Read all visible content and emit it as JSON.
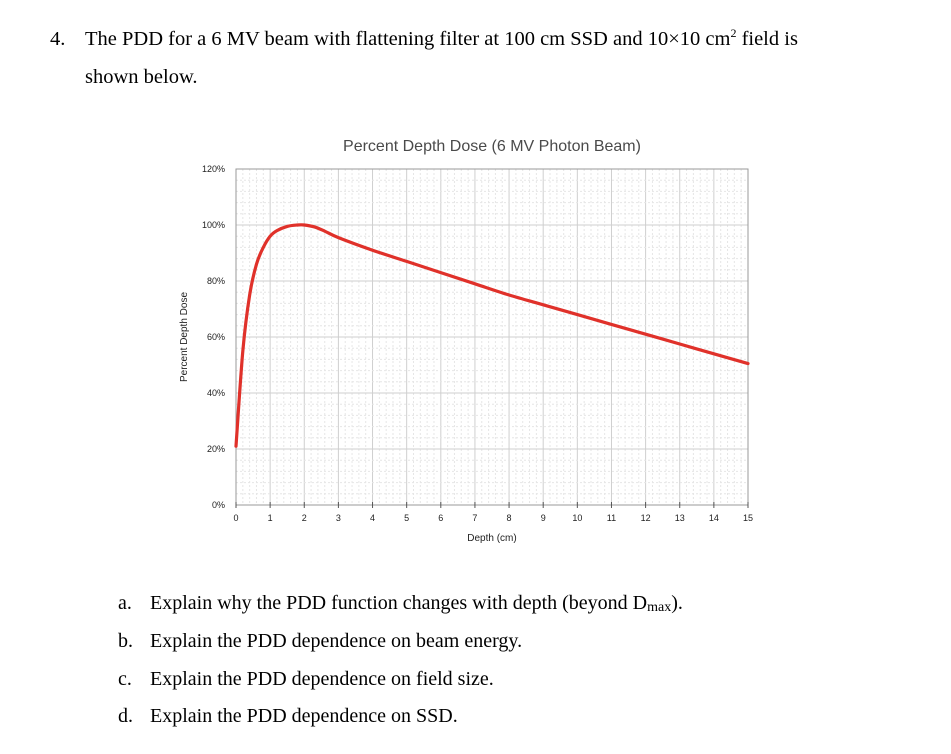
{
  "question": {
    "number": "4.",
    "line1_before_sup": "The PDD for a 6 MV beam with flattening filter at 100 cm SSD and 10×10 cm",
    "line1_sup": "2",
    "line1_after_sup": " field is",
    "line2": "shown below."
  },
  "chart_data": {
    "type": "line",
    "title": "Percent Depth Dose (6 MV Photon Beam)",
    "xlabel": "Depth (cm)",
    "ylabel": "Percent Depth Dose",
    "xlim": [
      0,
      15
    ],
    "ylim": [
      0,
      120
    ],
    "x_ticks": [
      "0",
      "1",
      "2",
      "3",
      "4",
      "5",
      "6",
      "7",
      "8",
      "9",
      "10",
      "11",
      "12",
      "13",
      "14",
      "15"
    ],
    "y_ticks": [
      "0%",
      "20%",
      "40%",
      "60%",
      "80%",
      "100%",
      "120%"
    ],
    "grid": true,
    "line_color": "#e0312a",
    "series": [
      {
        "x": [
          0,
          0.2,
          0.4,
          0.6,
          0.8,
          1.0,
          1.2,
          1.5,
          1.8,
          2.0,
          2.3,
          2.6,
          3.0,
          4.0,
          5.0,
          6.0,
          7.0,
          8.0,
          9.0,
          10.0,
          11.0,
          12.0,
          13.0,
          14.0,
          15.0
        ],
        "values": [
          21,
          55,
          75,
          86,
          92,
          96,
          98,
          99.5,
          100,
          100,
          99.3,
          97.8,
          95.5,
          91,
          87,
          83,
          79,
          75,
          71.5,
          68,
          64.5,
          61,
          57.5,
          54,
          50.5
        ]
      }
    ]
  },
  "sub_questions": [
    {
      "letter": "a.",
      "text_before": "Explain why the PDD function changes with depth (beyond D",
      "text_sub": "max",
      "text_after": ")."
    },
    {
      "letter": "b.",
      "text": "Explain the PDD dependence on beam energy."
    },
    {
      "letter": "c.",
      "text": "Explain the PDD dependence on field size."
    },
    {
      "letter": "d.",
      "text": "Explain the PDD dependence on SSD."
    }
  ]
}
